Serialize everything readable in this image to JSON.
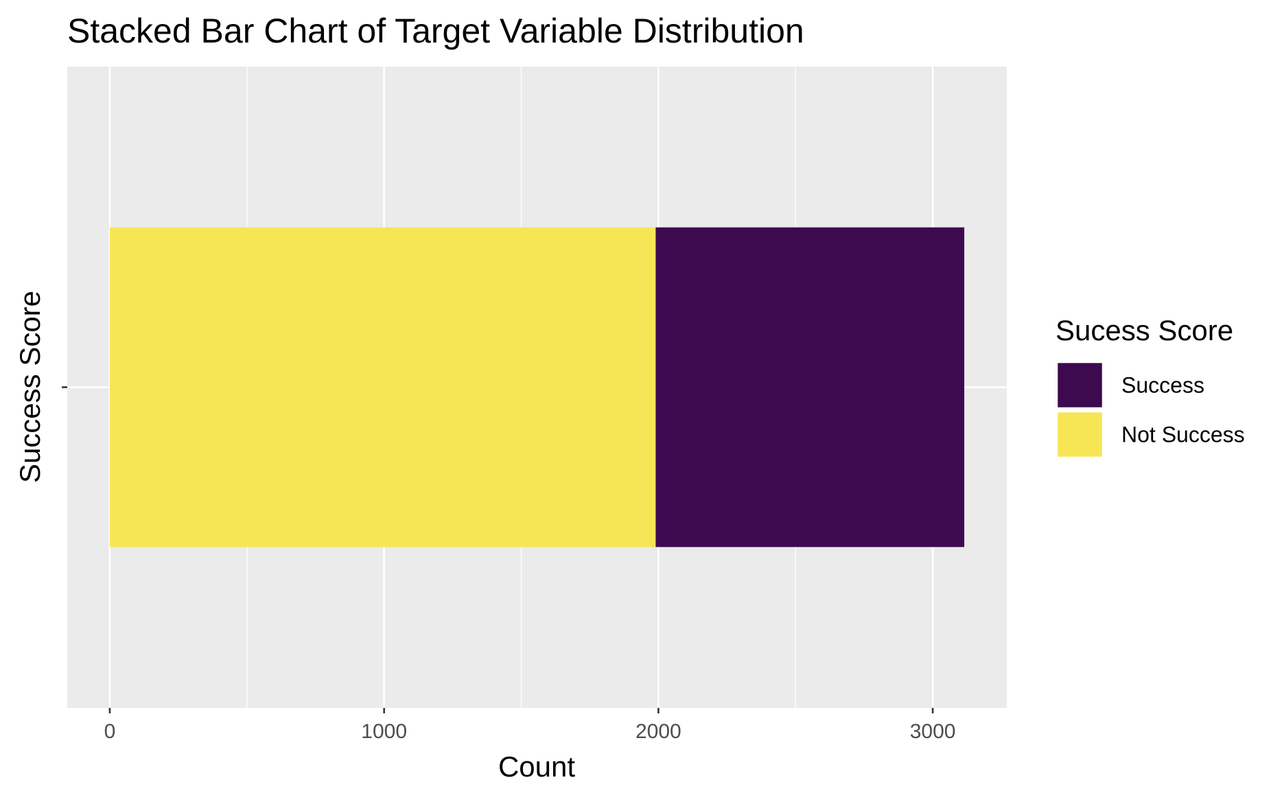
{
  "chart_data": {
    "type": "bar",
    "orientation": "horizontal",
    "stacked": true,
    "title": "Stacked Bar Chart of Target Variable Distribution",
    "xlabel": "Count",
    "ylabel": "Success Score",
    "categories": [
      ""
    ],
    "series": [
      {
        "name": "Not Success",
        "values": [
          1990
        ],
        "color": "#F6E655"
      },
      {
        "name": "Success",
        "values": [
          1125
        ],
        "color": "#3D0A4F"
      }
    ],
    "xlim": [
      -155,
      3270
    ],
    "x_ticks": [
      0,
      1000,
      2000,
      3000
    ],
    "x_tick_labels": [
      "0",
      "1000",
      "2000",
      "3000"
    ],
    "x_minor_ticks": [
      500,
      1500,
      2500
    ],
    "grid": true,
    "panel_background": "#EBEBEB",
    "legend": {
      "title": "Sucess Score",
      "position": "right",
      "entries": [
        {
          "label": "Success",
          "color": "#3D0A4F"
        },
        {
          "label": "Not Success",
          "color": "#F6E655"
        }
      ]
    }
  }
}
